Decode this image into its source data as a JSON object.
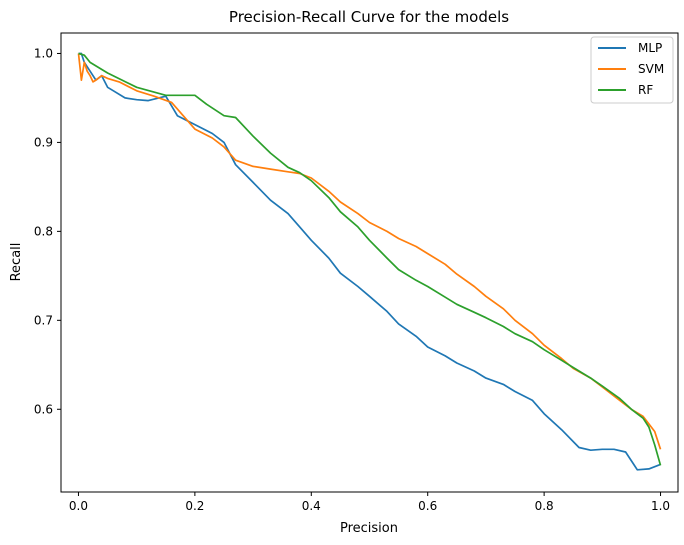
{
  "chart_data": {
    "type": "line",
    "title": "Precision-Recall Curve for the models",
    "xlabel": "Precision",
    "ylabel": "Recall",
    "xlim": [
      -0.03,
      1.03
    ],
    "ylim": [
      0.507,
      1.023
    ],
    "xticks": [
      0.0,
      0.2,
      0.4,
      0.6,
      0.8,
      1.0
    ],
    "xtick_labels": [
      "0.0",
      "0.2",
      "0.4",
      "0.6",
      "0.8",
      "1.0"
    ],
    "yticks": [
      0.6,
      0.7,
      0.8,
      0.9,
      1.0
    ],
    "ytick_labels": [
      "0.6",
      "0.7",
      "0.8",
      "0.9",
      "1.0"
    ],
    "grid": false,
    "legend_position": "top-right",
    "series": [
      {
        "name": "MLP",
        "color": "#1f77b4",
        "x": [
          0.0,
          0.005,
          0.01,
          0.02,
          0.03,
          0.04,
          0.05,
          0.06,
          0.08,
          0.1,
          0.12,
          0.15,
          0.17,
          0.2,
          0.23,
          0.25,
          0.27,
          0.3,
          0.33,
          0.36,
          0.38,
          0.4,
          0.43,
          0.45,
          0.48,
          0.5,
          0.53,
          0.55,
          0.58,
          0.6,
          0.63,
          0.65,
          0.68,
          0.7,
          0.73,
          0.75,
          0.78,
          0.8,
          0.83,
          0.86,
          0.88,
          0.9,
          0.92,
          0.94,
          0.96,
          0.98,
          1.0
        ],
        "y": [
          1.0,
          1.0,
          0.99,
          0.98,
          0.97,
          0.975,
          0.962,
          0.958,
          0.95,
          0.948,
          0.947,
          0.952,
          0.93,
          0.92,
          0.91,
          0.9,
          0.875,
          0.855,
          0.835,
          0.82,
          0.805,
          0.79,
          0.77,
          0.753,
          0.738,
          0.727,
          0.71,
          0.696,
          0.682,
          0.67,
          0.66,
          0.652,
          0.643,
          0.635,
          0.628,
          0.62,
          0.61,
          0.595,
          0.577,
          0.557,
          0.554,
          0.555,
          0.555,
          0.552,
          0.532,
          0.533,
          0.538
        ]
      },
      {
        "name": "SVM",
        "color": "#ff7f0e",
        "x": [
          0.0,
          0.005,
          0.01,
          0.015,
          0.02,
          0.025,
          0.03,
          0.04,
          0.05,
          0.07,
          0.1,
          0.13,
          0.16,
          0.18,
          0.2,
          0.23,
          0.25,
          0.27,
          0.3,
          0.33,
          0.36,
          0.38,
          0.4,
          0.43,
          0.45,
          0.48,
          0.5,
          0.53,
          0.55,
          0.58,
          0.6,
          0.63,
          0.65,
          0.68,
          0.7,
          0.73,
          0.75,
          0.78,
          0.8,
          0.83,
          0.85,
          0.88,
          0.9,
          0.93,
          0.95,
          0.97,
          0.99,
          1.0
        ],
        "y": [
          1.0,
          0.97,
          0.99,
          0.98,
          0.975,
          0.968,
          0.97,
          0.975,
          0.972,
          0.968,
          0.958,
          0.952,
          0.945,
          0.93,
          0.915,
          0.905,
          0.895,
          0.88,
          0.873,
          0.87,
          0.867,
          0.865,
          0.86,
          0.845,
          0.833,
          0.82,
          0.81,
          0.8,
          0.792,
          0.783,
          0.775,
          0.763,
          0.752,
          0.738,
          0.727,
          0.713,
          0.7,
          0.685,
          0.672,
          0.657,
          0.646,
          0.635,
          0.625,
          0.61,
          0.6,
          0.592,
          0.575,
          0.555
        ]
      },
      {
        "name": "RF",
        "color": "#2ca02c",
        "x": [
          0.0,
          0.01,
          0.02,
          0.05,
          0.1,
          0.15,
          0.2,
          0.22,
          0.25,
          0.27,
          0.3,
          0.33,
          0.36,
          0.38,
          0.4,
          0.43,
          0.45,
          0.48,
          0.5,
          0.53,
          0.55,
          0.58,
          0.6,
          0.63,
          0.65,
          0.68,
          0.7,
          0.73,
          0.75,
          0.78,
          0.8,
          0.83,
          0.85,
          0.88,
          0.9,
          0.93,
          0.95,
          0.97,
          0.98,
          0.99,
          1.0
        ],
        "y": [
          1.0,
          0.998,
          0.99,
          0.978,
          0.962,
          0.953,
          0.953,
          0.943,
          0.93,
          0.928,
          0.907,
          0.888,
          0.872,
          0.866,
          0.857,
          0.838,
          0.822,
          0.805,
          0.79,
          0.77,
          0.757,
          0.745,
          0.738,
          0.726,
          0.718,
          0.709,
          0.703,
          0.693,
          0.685,
          0.676,
          0.667,
          0.655,
          0.647,
          0.635,
          0.626,
          0.612,
          0.6,
          0.59,
          0.58,
          0.56,
          0.537
        ]
      }
    ]
  }
}
